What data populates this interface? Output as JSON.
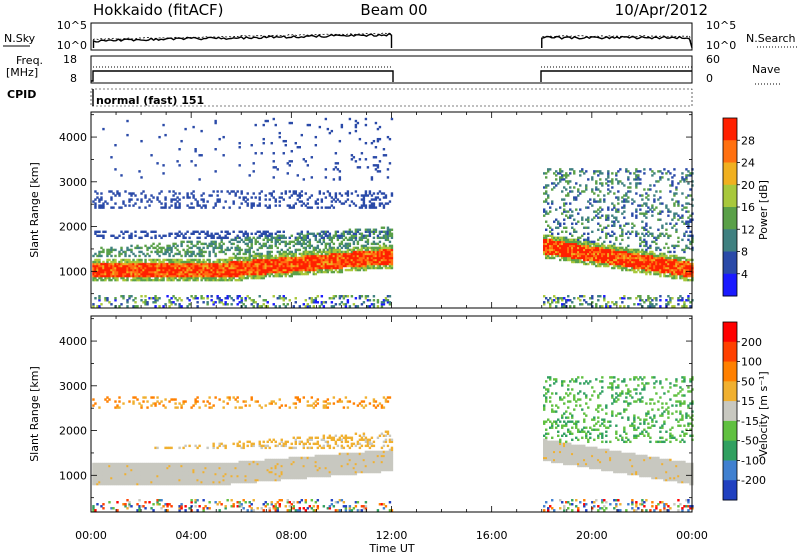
{
  "header": {
    "site": "Hokkaido (fitACF)",
    "beam": "Beam 00",
    "date": "10/Apr/2012"
  },
  "noise_panel": {
    "left_label": "N.Sky",
    "right_label": "N.Search",
    "left_ticks": [
      "10^5",
      "10^0"
    ],
    "right_ticks": [
      "10^5",
      "10^0"
    ]
  },
  "freq_panel": {
    "left_label_1": "Freq.",
    "left_label_2": "[MHz]",
    "right_label": "Nave",
    "left_ticks": [
      "18",
      "8"
    ],
    "right_ticks": [
      "60",
      "0"
    ]
  },
  "cpid_panel": {
    "label": "CPID",
    "program": "normal (fast) 151"
  },
  "time_axis": {
    "label": "Time UT",
    "ticks": [
      "00:00",
      "04:00",
      "08:00",
      "12:00",
      "16:00",
      "20:00",
      "00:00"
    ]
  },
  "chart_data": [
    {
      "type": "heatmap",
      "name": "power",
      "ylabel": "Slant Range [km]",
      "yticks": [
        1000,
        2000,
        3000,
        4000
      ],
      "ylim": [
        180,
        4560
      ],
      "xlim_hours": [
        0,
        24
      ],
      "colorbar_label": "Power [dB]",
      "colorbar_ticks": [
        "4",
        "8",
        "12",
        "16",
        "20",
        "24",
        "28"
      ],
      "colorbar_colors": [
        "#1a1aff",
        "#2a4aa8",
        "#3f8080",
        "#5aa048",
        "#a8c83c",
        "#f0b020",
        "#ff7010",
        "#ff2000"
      ],
      "data_gaps_hours": [
        [
          12.0,
          18.0
        ]
      ],
      "features": [
        {
          "label": "strong echo band",
          "start_hour": 0,
          "end_hour": 12,
          "range_km_start": [
            850,
            1200
          ],
          "range_km_end": [
            1150,
            1500
          ],
          "power_db": 28
        },
        {
          "label": "strong echo band",
          "start_hour": 18,
          "end_hour": 24,
          "range_km_start": [
            1350,
            1800
          ],
          "range_km_end": [
            850,
            1250
          ],
          "power_db": 24
        }
      ]
    },
    {
      "type": "heatmap",
      "name": "velocity",
      "ylabel": "Slant Range [km]",
      "yticks": [
        1000,
        2000,
        3000,
        4000
      ],
      "ylim": [
        180,
        4560
      ],
      "xlim_hours": [
        0,
        24
      ],
      "colorbar_label": "Velocity [m s⁻¹]",
      "colorbar_ticks": [
        "200",
        "100",
        "50",
        "15",
        "-15",
        "-50",
        "-100",
        "-200"
      ],
      "colorbar_colors": [
        "#2040c0",
        "#4080d0",
        "#30a060",
        "#60c040",
        "#c8c8c0",
        "#f0b030",
        "#ff8000",
        "#ff4000",
        "#ff0000"
      ],
      "data_gaps_hours": [
        [
          12.0,
          18.0
        ]
      ]
    }
  ]
}
